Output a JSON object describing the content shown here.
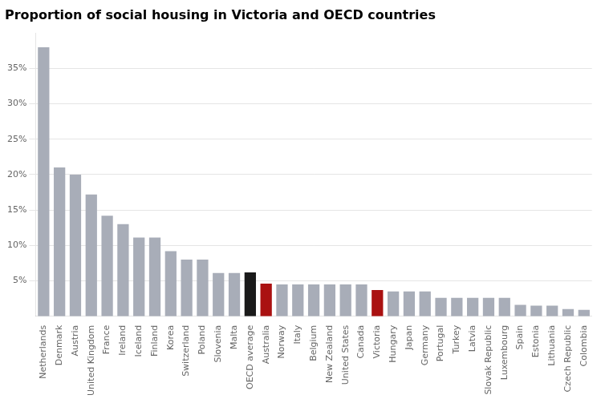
{
  "chart_data": {
    "type": "bar",
    "title": "Proportion of social housing in Victoria and OECD countries",
    "categories": [
      "Netherlands",
      "Denmark",
      "Austria",
      "United Kingdom",
      "France",
      "Ireland",
      "Iceland",
      "Finland",
      "Korea",
      "Switzerland",
      "Poland",
      "Slovenia",
      "Malta",
      "OECD average",
      "Australia",
      "Norway",
      "Italy",
      "Belgium",
      "New Zealand",
      "United States",
      "Canada",
      "Victoria",
      "Hungary",
      "Japan",
      "Germany",
      "Portugal",
      "Turkey",
      "Latvia",
      "Slovak Republic",
      "Luxembourg",
      "Spain",
      "Estonia",
      "Lithuania",
      "Czech Republic",
      "Colombia"
    ],
    "values": [
      38.0,
      21.0,
      20.0,
      17.2,
      14.2,
      13.0,
      11.1,
      11.1,
      9.2,
      8.0,
      8.0,
      6.1,
      6.1,
      6.2,
      4.6,
      4.5,
      4.5,
      4.5,
      4.5,
      4.5,
      4.5,
      3.7,
      3.5,
      3.5,
      3.5,
      2.6,
      2.6,
      2.6,
      2.6,
      2.6,
      1.6,
      1.5,
      1.5,
      1.0,
      0.9
    ],
    "colors": [
      "#a8adb8",
      "#a8adb8",
      "#a8adb8",
      "#a8adb8",
      "#a8adb8",
      "#a8adb8",
      "#a8adb8",
      "#a8adb8",
      "#a8adb8",
      "#a8adb8",
      "#a8adb8",
      "#a8adb8",
      "#a8adb8",
      "#1a1a1a",
      "#aa1111",
      "#a8adb8",
      "#a8adb8",
      "#a8adb8",
      "#a8adb8",
      "#a8adb8",
      "#a8adb8",
      "#aa1111",
      "#a8adb8",
      "#a8adb8",
      "#a8adb8",
      "#a8adb8",
      "#a8adb8",
      "#a8adb8",
      "#a8adb8",
      "#a8adb8",
      "#a8adb8",
      "#a8adb8",
      "#a8adb8",
      "#a8adb8",
      "#a8adb8"
    ],
    "ylim": [
      0,
      40
    ],
    "yticks": [
      {
        "value": 5,
        "label": "5%"
      },
      {
        "value": 10,
        "label": "10%"
      },
      {
        "value": 15,
        "label": "15%"
      },
      {
        "value": 20,
        "label": "20%"
      },
      {
        "value": 25,
        "label": "25%"
      },
      {
        "value": 30,
        "label": "30%"
      },
      {
        "value": 35,
        "label": "35%"
      }
    ],
    "grid": true
  }
}
